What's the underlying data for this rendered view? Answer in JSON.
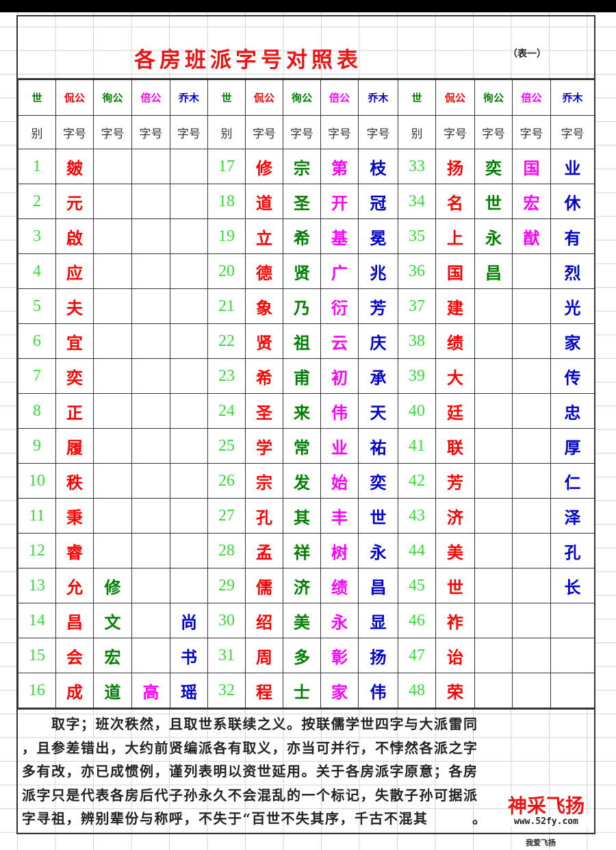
{
  "title": "各房班派字号对照表",
  "subtitle": "（表一）",
  "header": {
    "generation_top": "世",
    "generation_bottom": "别",
    "branches": [
      "侃公",
      "徇公",
      "倍公",
      "乔木"
    ],
    "field": "字号"
  },
  "colors": {
    "branch_1": "#ff0000",
    "branch_2": "#008000",
    "branch_3": "#ff00ff",
    "branch_4": "#0000cc",
    "generation_number": "#33dd33"
  },
  "groups": [
    {
      "rows": [
        [
          "1",
          "皴",
          "",
          "",
          ""
        ],
        [
          "2",
          "元",
          "",
          "",
          ""
        ],
        [
          "3",
          "啟",
          "",
          "",
          ""
        ],
        [
          "4",
          "应",
          "",
          "",
          ""
        ],
        [
          "5",
          "夫",
          "",
          "",
          ""
        ],
        [
          "6",
          "宜",
          "",
          "",
          ""
        ],
        [
          "7",
          "奕",
          "",
          "",
          ""
        ],
        [
          "8",
          "正",
          "",
          "",
          ""
        ],
        [
          "9",
          "履",
          "",
          "",
          ""
        ],
        [
          "10",
          "秩",
          "",
          "",
          ""
        ],
        [
          "11",
          "秉",
          "",
          "",
          ""
        ],
        [
          "12",
          "睿",
          "",
          "",
          ""
        ],
        [
          "13",
          "允",
          "修",
          "",
          ""
        ],
        [
          "14",
          "昌",
          "文",
          "",
          "尚"
        ],
        [
          "15",
          "会",
          "宏",
          "",
          "书"
        ],
        [
          "16",
          "成",
          "道",
          "高",
          "瑶"
        ]
      ]
    },
    {
      "rows": [
        [
          "17",
          "修",
          "宗",
          "第",
          "枝"
        ],
        [
          "18",
          "道",
          "圣",
          "开",
          "冠"
        ],
        [
          "19",
          "立",
          "希",
          "基",
          "冕"
        ],
        [
          "20",
          "德",
          "贤",
          "广",
          "兆"
        ],
        [
          "21",
          "象",
          "乃",
          "衍",
          "芳"
        ],
        [
          "22",
          "贤",
          "祖",
          "云",
          "庆"
        ],
        [
          "23",
          "希",
          "甫",
          "初",
          "承"
        ],
        [
          "24",
          "圣",
          "来",
          "伟",
          "天"
        ],
        [
          "25",
          "学",
          "常",
          "业",
          "祐"
        ],
        [
          "26",
          "宗",
          "发",
          "始",
          "奕"
        ],
        [
          "27",
          "孔",
          "其",
          "丰",
          "世"
        ],
        [
          "28",
          "孟",
          "祥",
          "树",
          "永"
        ],
        [
          "29",
          "儒",
          "济",
          "绩",
          "昌"
        ],
        [
          "30",
          "绍",
          "美",
          "永",
          "显"
        ],
        [
          "31",
          "周",
          "多",
          "彰",
          "扬"
        ],
        [
          "32",
          "程",
          "士",
          "家",
          "伟"
        ]
      ]
    },
    {
      "rows": [
        [
          "33",
          "扬",
          "奕",
          "国",
          "业"
        ],
        [
          "34",
          "名",
          "世",
          "宏",
          "休"
        ],
        [
          "35",
          "上",
          "永",
          "猷",
          "有"
        ],
        [
          "36",
          "国",
          "昌",
          "",
          "烈"
        ],
        [
          "37",
          "建",
          "",
          "",
          "光"
        ],
        [
          "38",
          "绩",
          "",
          "",
          "家"
        ],
        [
          "39",
          "大",
          "",
          "",
          "传"
        ],
        [
          "40",
          "廷",
          "",
          "",
          "忠"
        ],
        [
          "41",
          "联",
          "",
          "",
          "厚"
        ],
        [
          "42",
          "芳",
          "",
          "",
          "仁"
        ],
        [
          "43",
          "济",
          "",
          "",
          "泽"
        ],
        [
          "44",
          "美",
          "",
          "",
          "孔"
        ],
        [
          "45",
          "世",
          "",
          "",
          "长"
        ],
        [
          "46",
          "祚",
          "",
          "",
          ""
        ],
        [
          "47",
          "诒",
          "",
          "",
          ""
        ],
        [
          "48",
          "荣",
          "",
          "",
          ""
        ]
      ]
    }
  ],
  "paragraph": [
    "　　取字；班次秩然，且取世系联续之义。按联儒学世四字与大派雷同",
    "，且参差错出，大约前贤编派各有取义，亦当可并行，不悖然各派之字",
    "多有改，亦已成惯例，谨列表明以资世延用。关于各房派字原意；各房",
    "派字只是代表各房后代子孙永久不会混乱的一个标记，失散子孙可据派",
    "字寻祖，辨别辈份与称呼，不失于“百世不失其序，千古不混其　　　。"
  ],
  "watermark": {
    "logo": "神采飞扬",
    "url": "www.52fy.com",
    "tagline": "我爱飞扬"
  }
}
